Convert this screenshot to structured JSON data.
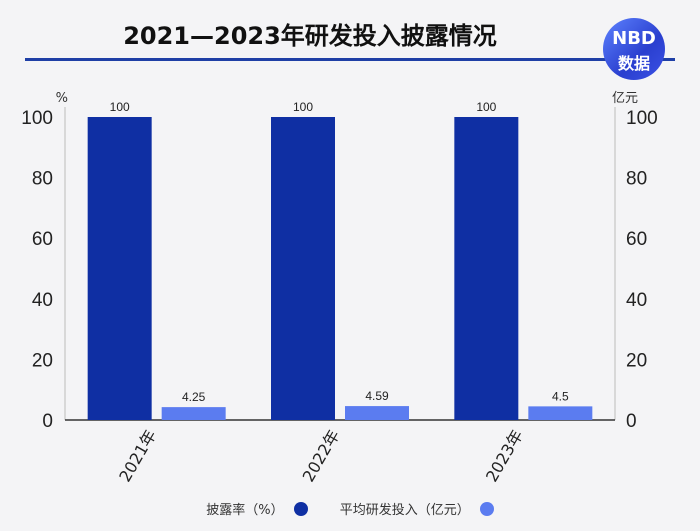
{
  "title": "2021—2023年研发投入披露情况",
  "logo": {
    "line1": "NBD",
    "line2": "数据"
  },
  "colors": {
    "series1": "#0f2fa3",
    "series2": "#5b7cf0",
    "title_rule": "#1f3fa6",
    "axis": "#333333"
  },
  "chart_data": {
    "type": "bar",
    "categories": [
      "2021年",
      "2022年",
      "2023年"
    ],
    "series": [
      {
        "name": "披露率（%）",
        "values": [
          100,
          100,
          100
        ],
        "axis": "left",
        "labels": [
          "100",
          "100",
          "100"
        ]
      },
      {
        "name": "平均研发投入（亿元）",
        "values": [
          4.25,
          4.59,
          4.5
        ],
        "axis": "right",
        "labels": [
          "4.25",
          "4.59",
          "4.5"
        ]
      }
    ],
    "left_axis": {
      "unit": "%",
      "ylim": [
        0,
        100
      ],
      "ticks": [
        0,
        20,
        40,
        60,
        80,
        100
      ]
    },
    "right_axis": {
      "unit": "亿元",
      "ylim": [
        0,
        100
      ],
      "ticks": [
        0,
        20,
        40,
        60,
        80,
        100
      ]
    },
    "grid": false,
    "legend_position": "bottom"
  },
  "legend": [
    {
      "label": "披露率（%）",
      "color": "#0f2fa3"
    },
    {
      "label": "平均研发投入（亿元）",
      "color": "#5b7cf0"
    }
  ]
}
